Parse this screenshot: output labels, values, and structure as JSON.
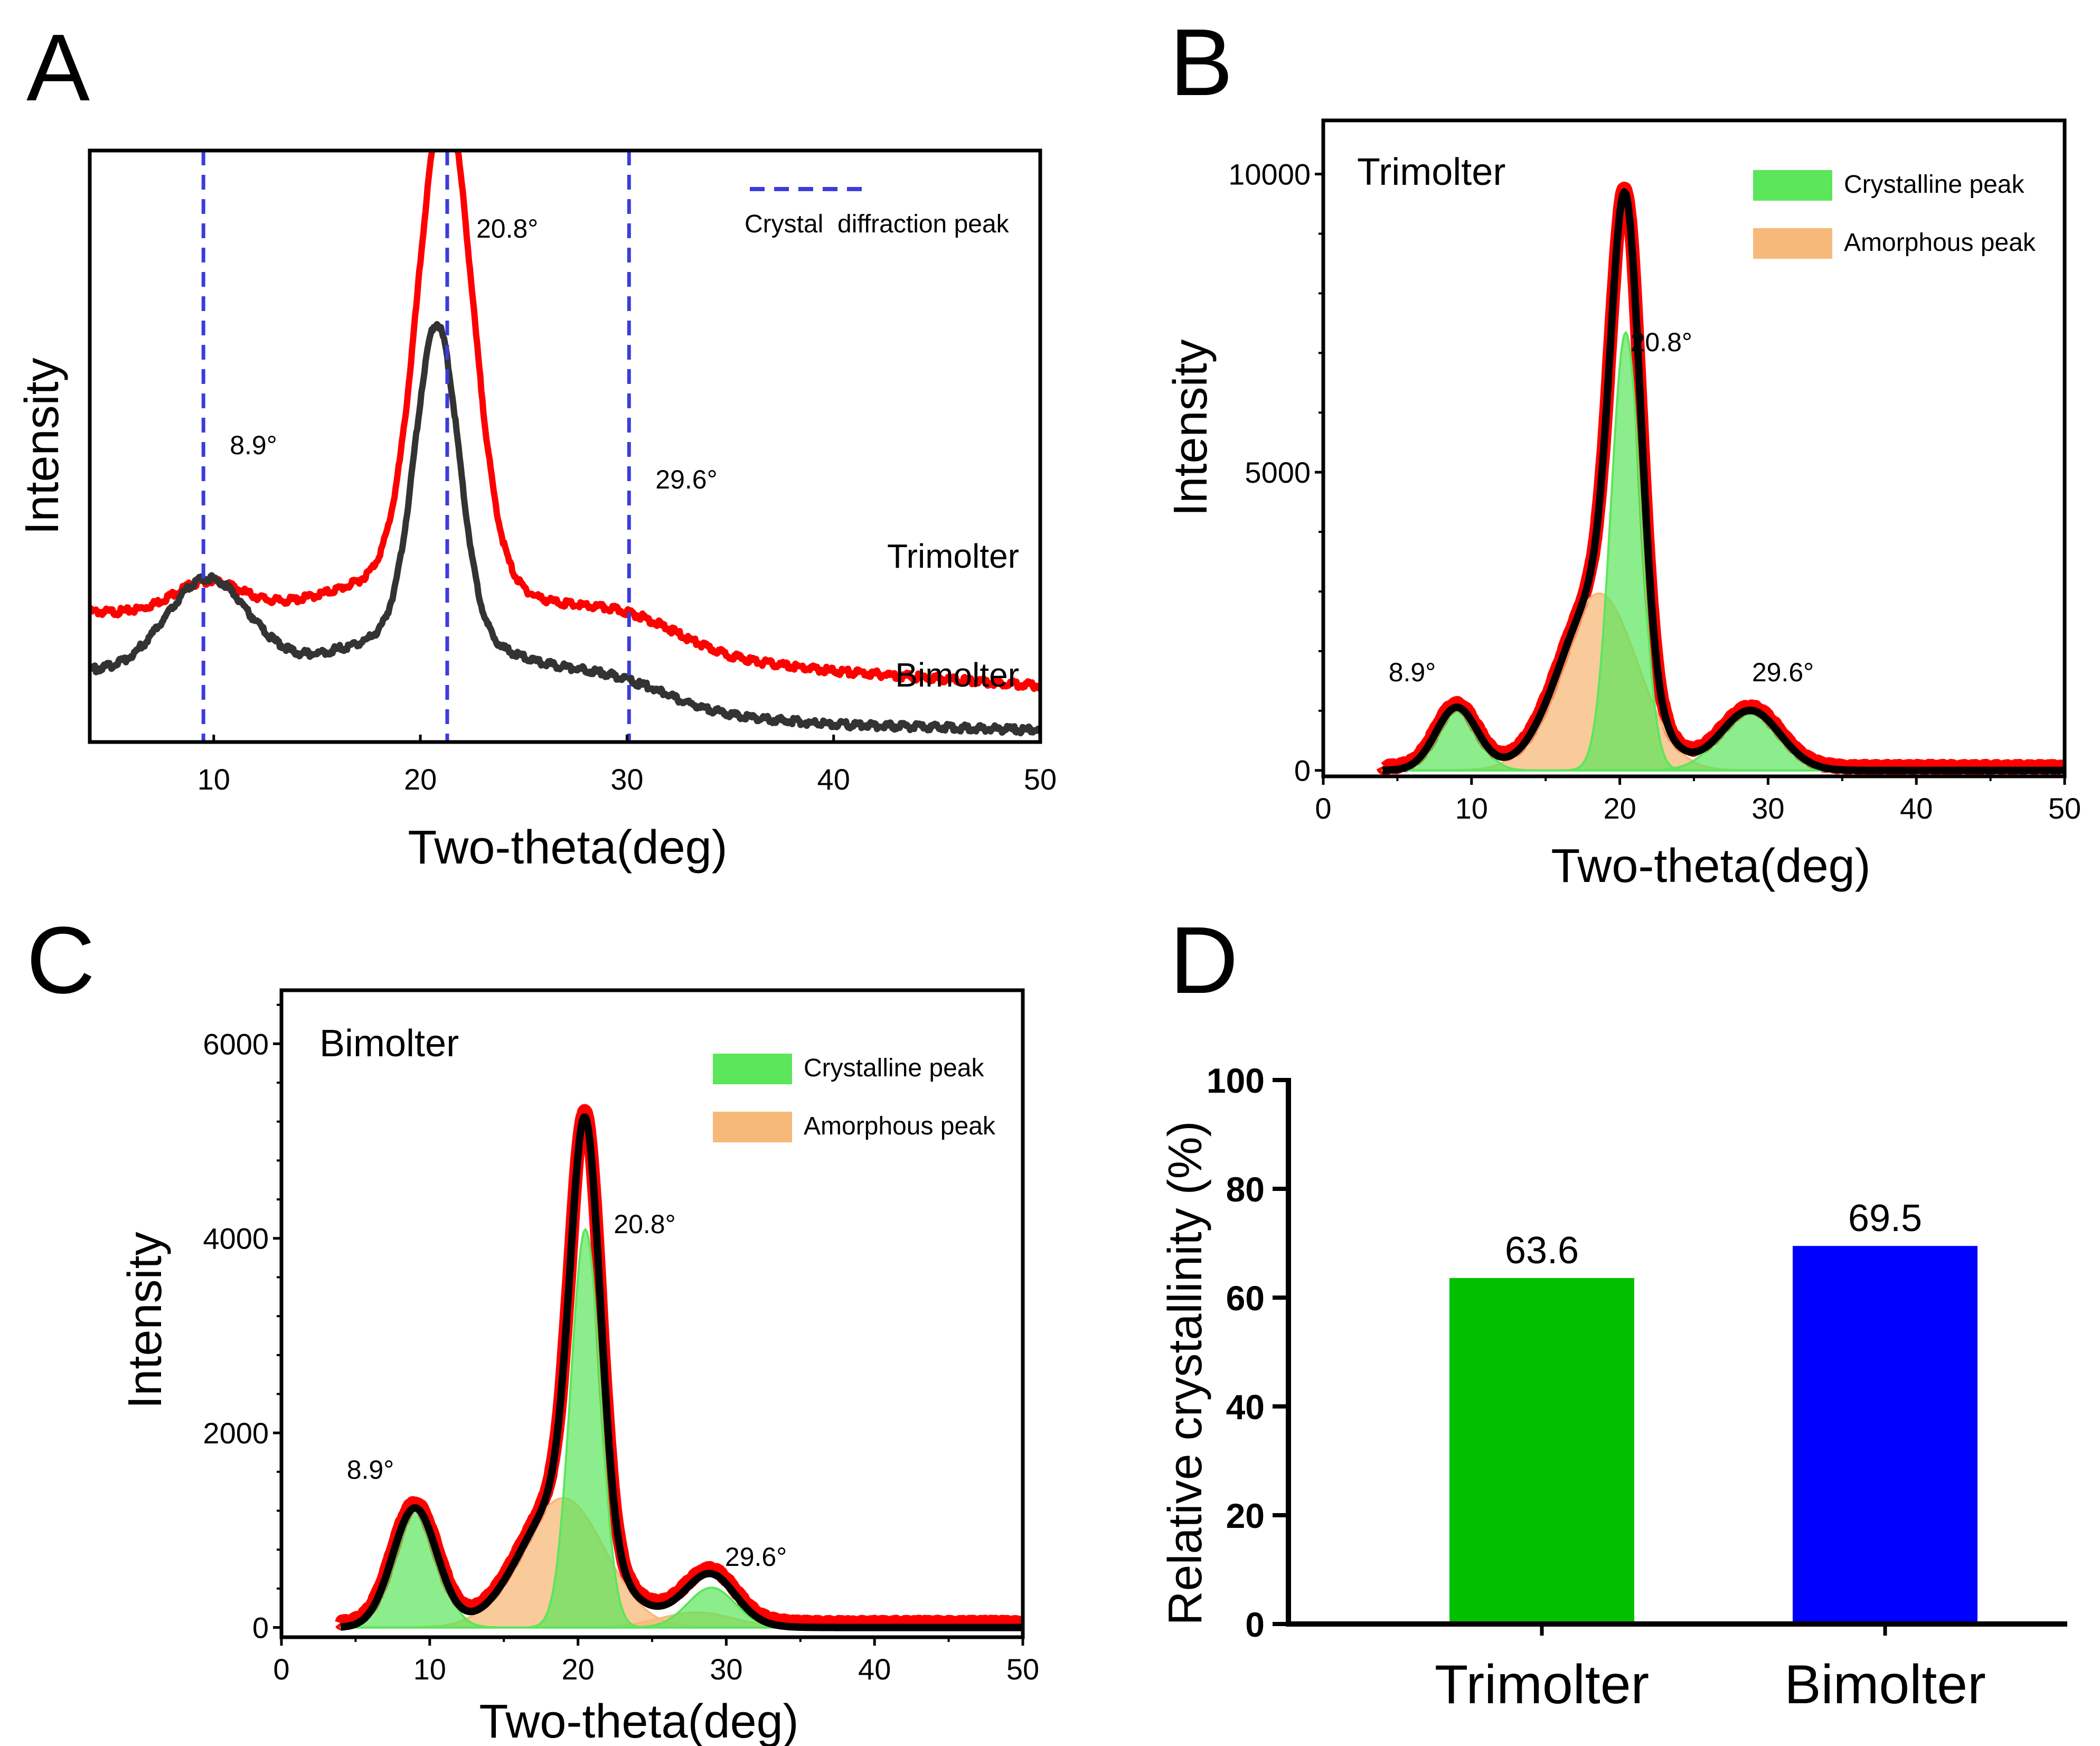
{
  "panels": {
    "A": {
      "letter": "A",
      "xlabel": "Two-theta(deg)",
      "ylabel": "Intensity"
    },
    "B": {
      "letter": "B",
      "xlabel": "Two-theta(deg)",
      "ylabel": "Intensity",
      "inner_label": "Trimolter",
      "legend": [
        "Crystalline peak",
        "Amorphous peak"
      ]
    },
    "C": {
      "letter": "C",
      "xlabel": "Two-theta(deg)",
      "ylabel": "Intensity",
      "inner_label": "Bimolter",
      "legend": [
        "Crystalline peak",
        "Amorphous peak"
      ]
    },
    "D": {
      "letter": "D",
      "ylabel": "Relative crystallinity (%)"
    }
  },
  "colors": {
    "trimolter": "#ff0000",
    "bimolter": "#333333",
    "crystal_line": "#3c3cdc",
    "crystalline": "#5be65b",
    "amorphous": "#f7b97a",
    "fit": "#000000",
    "bar_trimolter": "#00c000",
    "bar_bimolter": "#0000ff"
  },
  "chart_data": [
    {
      "id": "A",
      "type": "line",
      "title": "",
      "xlabel": "Two-theta(deg)",
      "ylabel": "Intensity",
      "xlim": [
        4,
        50
      ],
      "xticks": [
        10,
        20,
        30,
        40,
        50
      ],
      "legend": [
        "Crystal  diffraction peak"
      ],
      "crystal_peaks": [
        9.5,
        21.3,
        30.1
      ],
      "peak_labels": [
        {
          "text": "8.9°",
          "x": 9.5
        },
        {
          "text": "20.8°",
          "x": 21.3
        },
        {
          "text": "29.6°",
          "x": 30.1
        }
      ],
      "series": [
        {
          "name": "Trimolter",
          "baseline": [
            [
              4,
              0.22
            ],
            [
              20,
              0.19
            ],
            [
              30,
              0.155
            ],
            [
              40,
              0.12
            ],
            [
              50,
              0.095
            ]
          ],
          "peaks": [
            {
              "c": 9.7,
              "a": 0.055,
              "w": 1.7
            },
            {
              "c": 21.2,
              "a": 0.8,
              "w": 1.3
            },
            {
              "c": 21.0,
              "a": 0.1,
              "w": 5
            },
            {
              "c": 30.2,
              "a": 0.045,
              "w": 2.5
            }
          ]
        },
        {
          "name": "Bimolter",
          "baseline": [
            [
              4,
              0.12
            ],
            [
              20,
              0.1
            ],
            [
              30,
              0.055
            ],
            [
              40,
              0.03
            ],
            [
              50,
              0.02
            ]
          ],
          "peaks": [
            {
              "c": 9.7,
              "a": 0.16,
              "w": 2.0
            },
            {
              "c": 20.8,
              "a": 0.52,
              "w": 1.05
            },
            {
              "c": 20.8,
              "a": 0.09,
              "w": 4.5
            },
            {
              "c": 29.6,
              "a": 0.04,
              "w": 2.5
            }
          ]
        }
      ]
    },
    {
      "id": "B",
      "type": "area",
      "title": "Trimolter",
      "xlabel": "Two-theta(deg)",
      "ylabel": "Intensity",
      "xlim": [
        0,
        50
      ],
      "ylim": [
        -100,
        10900
      ],
      "xticks": [
        0,
        10,
        20,
        30,
        40,
        50
      ],
      "yticks": [
        0,
        5000,
        10000
      ],
      "legend": [
        "Crystalline peak",
        "Amorphous peak"
      ],
      "peak_labels": [
        {
          "text": "8.9°",
          "x": 6
        },
        {
          "text": "20.8°",
          "x": 22.8
        },
        {
          "text": "29.6°",
          "x": 31
        }
      ],
      "crystalline_peaks": [
        {
          "c": 9,
          "a": 1050,
          "w": 1.4
        },
        {
          "c": 20.4,
          "a": 7300,
          "w": 1.0
        },
        {
          "c": 28.8,
          "a": 1000,
          "w": 2.0
        }
      ],
      "amorphous_peaks": [
        {
          "c": 18.6,
          "a": 2950,
          "w": 2.6
        }
      ],
      "peak_max": 9700,
      "range": [
        4,
        50
      ]
    },
    {
      "id": "C",
      "type": "area",
      "title": "Bimolter",
      "xlabel": "Two-theta(deg)",
      "ylabel": "Intensity",
      "xlim": [
        0,
        50
      ],
      "ylim": [
        -100,
        6550
      ],
      "xticks": [
        0,
        10,
        20,
        30,
        40,
        50
      ],
      "yticks": [
        0,
        2000,
        4000,
        6000
      ],
      "legend": [
        "Crystalline peak",
        "Amorphous peak"
      ],
      "peak_labels": [
        {
          "text": "8.9°",
          "x": 6
        },
        {
          "text": "20.8°",
          "x": 24.5
        },
        {
          "text": "29.6°",
          "x": 32
        }
      ],
      "crystalline_peaks": [
        {
          "c": 9,
          "a": 1200,
          "w": 1.5
        },
        {
          "c": 20.5,
          "a": 4000,
          "w": 1.0
        },
        {
          "c": 29,
          "a": 400,
          "w": 1.6
        }
      ],
      "amorphous_peaks": [
        {
          "c": 19,
          "a": 1300,
          "w": 2.8
        },
        {
          "c": 28,
          "a": 150,
          "w": 2.5
        }
      ],
      "peak_max": 5250,
      "range": [
        4,
        50
      ]
    },
    {
      "id": "D",
      "type": "bar",
      "title": "",
      "xlabel": "",
      "ylabel": "Relative crystallinity (%)",
      "categories": [
        "Trimolter",
        "Bimolter"
      ],
      "values": [
        63.6,
        69.5
      ],
      "value_labels": [
        "63.6",
        "69.5"
      ],
      "ylim": [
        0,
        100
      ],
      "yticks": [
        0,
        20,
        40,
        60,
        80,
        100
      ]
    }
  ]
}
